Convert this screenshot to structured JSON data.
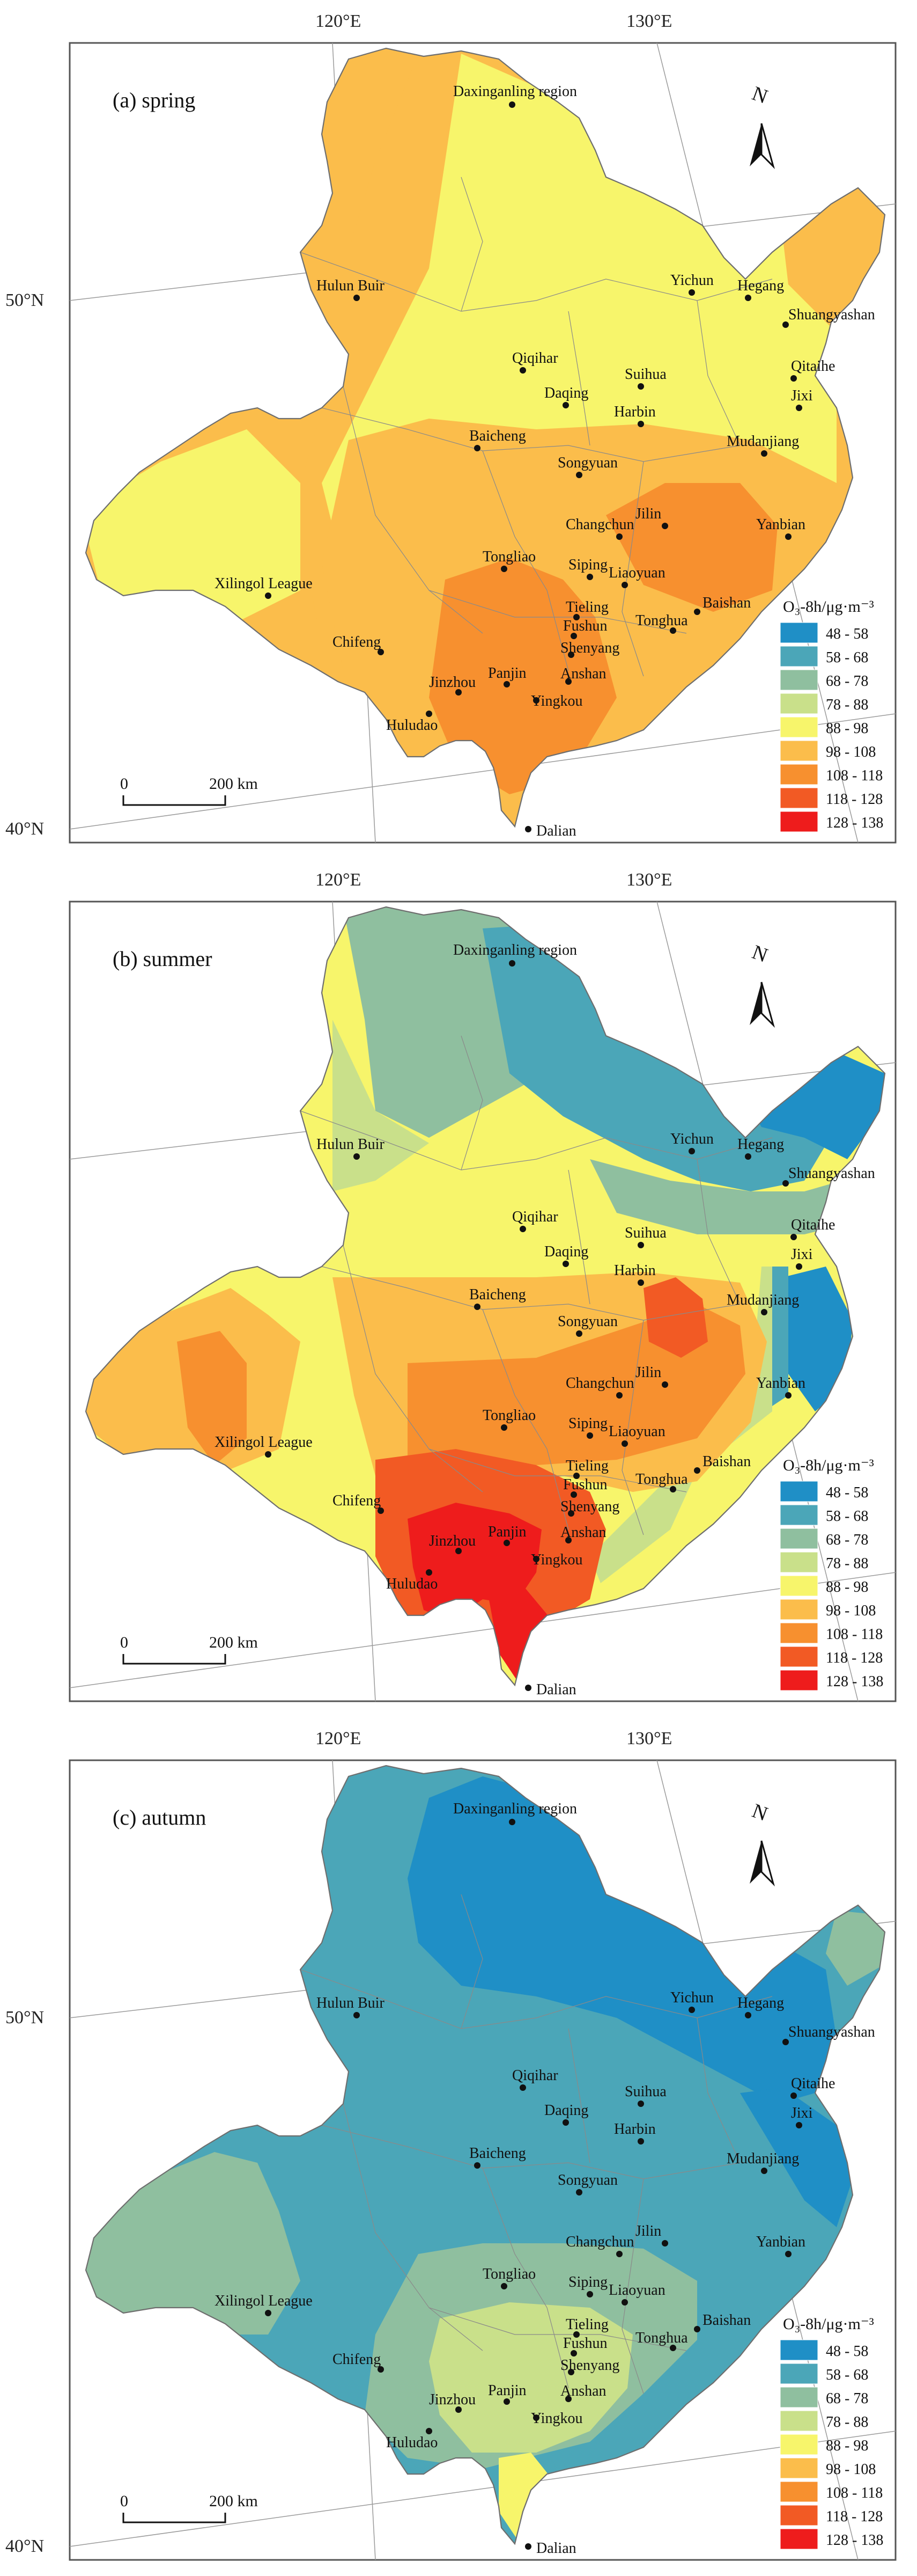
{
  "legend": {
    "title": "O₃-8h/μg·m⁻³",
    "classes": [
      {
        "label": "48 - 58",
        "color": "#1f8fc6"
      },
      {
        "label": "58 - 68",
        "color": "#4ba6b8"
      },
      {
        "label": "68 - 78",
        "color": "#8fbf9f"
      },
      {
        "label": "78 - 88",
        "color": "#c9e08a"
      },
      {
        "label": "88 - 98",
        "color": "#f7f56b"
      },
      {
        "label": "98 - 108",
        "color": "#fbbd4b"
      },
      {
        "label": "108 - 118",
        "color": "#f7902f"
      },
      {
        "label": "118 - 128",
        "color": "#f25a24"
      },
      {
        "label": "128 - 138",
        "color": "#ee1c1c"
      }
    ]
  },
  "scale_bar": {
    "start": "0",
    "end": "200 km"
  },
  "north_label": "N",
  "panels": [
    {
      "title": "(a) spring",
      "lon_labels": [
        "120°E",
        "130°E"
      ],
      "lat_labels": [
        "50°N",
        "40°N"
      ],
      "cities": [
        "Daxinganling region",
        "Hulun Buir",
        "Yichun",
        "Hegang",
        "Shuangyashan",
        "Qiqihar",
        "Qitaihe",
        "Suihua",
        "Daqing",
        "Jixi",
        "Harbin",
        "Mudanjiang",
        "Baicheng",
        "Songyuan",
        "Jilin",
        "Changchun",
        "Yanbian",
        "Tongliao",
        "Siping",
        "Liaoyuan",
        "Xilingol League",
        "Tieling",
        "Tonghua",
        "Baishan",
        "Fushun",
        "Shenyang",
        "Chifeng",
        "Anshan",
        "Jinzhou",
        "Panjin",
        "Huludao",
        "Yingkou",
        "Dalian"
      ]
    },
    {
      "title": "(b) summer",
      "lon_labels": [
        "120°E",
        "130°E"
      ],
      "lat_labels": [],
      "cities": [
        "Daxinganling region",
        "Hulun Buir",
        "Yichun",
        "Hegang",
        "Shuangyashan",
        "Qiqihar",
        "Qitaihe",
        "Suihua",
        "Daqing",
        "Jixi",
        "Harbin",
        "Mudanjiang",
        "Baicheng",
        "Songyuan",
        "Jilin",
        "Changchun",
        "Yanbian",
        "Tongliao",
        "Siping",
        "Liaoyuan",
        "Xilingol League",
        "Tieling",
        "Tonghua",
        "Baishan",
        "Fushun",
        "Shenyang",
        "Chifeng",
        "Anshan",
        "Jinzhou",
        "Panjin",
        "Huludao",
        "Yingkou",
        "Dalian"
      ]
    },
    {
      "title": "(c) autumn",
      "lon_labels": [
        "120°E",
        "130°E"
      ],
      "lat_labels": [
        "50°N",
        "40°N"
      ],
      "cities": [
        "Daxinganling region",
        "Hulun Buir",
        "Yichun",
        "Hegang",
        "Shuangyashan",
        "Qiqihar",
        "Qitaihe",
        "Suihua",
        "Daqing",
        "Jixi",
        "Harbin",
        "Mudanjiang",
        "Baicheng",
        "Songyuan",
        "Jilin",
        "Changchun",
        "Yanbian",
        "Tongliao",
        "Siping",
        "Liaoyuan",
        "Xilingol League",
        "Tieling",
        "Tonghua",
        "Baishan",
        "Fushun",
        "Shenyang",
        "Chifeng",
        "Anshan",
        "Jinzhou",
        "Panjin",
        "Huludao",
        "Yingkou",
        "Dalian"
      ]
    }
  ]
}
